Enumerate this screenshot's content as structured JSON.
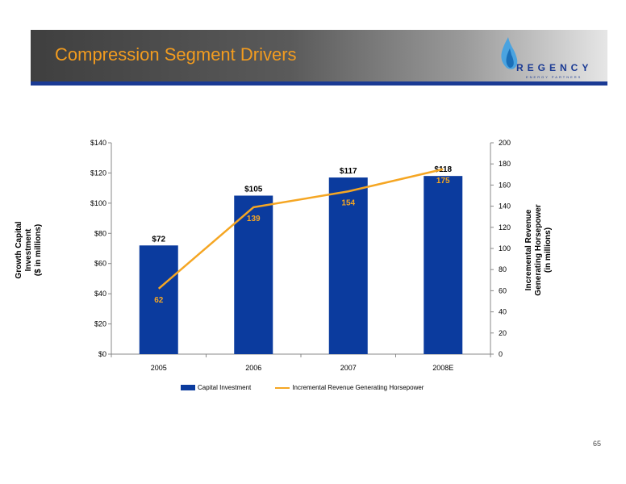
{
  "slide": {
    "title": "Compression Segment Drivers",
    "page_number": "65",
    "logo_text": "REGENCY",
    "logo_subtext": "ENERGY PARTNERS"
  },
  "colors": {
    "bar": "#0b3b9e",
    "line": "#f5a623",
    "title": "#f39c1f",
    "accent_bar": "#1a3a94"
  },
  "chart_data": {
    "type": "bar",
    "categories": [
      "2005",
      "2006",
      "2007",
      "2008E"
    ],
    "series": [
      {
        "name": "Capital Investment",
        "type": "bar",
        "axis": "left",
        "values": [
          72,
          105,
          117,
          118
        ],
        "labels": [
          "$72",
          "$105",
          "$117",
          "$118"
        ]
      },
      {
        "name": "Incremental Revenue Generating Horsepower",
        "type": "line",
        "axis": "right",
        "values": [
          62,
          139,
          154,
          175
        ],
        "labels": [
          "62",
          "139",
          "154",
          "175"
        ]
      }
    ],
    "left_axis": {
      "title_lines": [
        "Growth Capital",
        "Investment",
        "($ in millions)"
      ],
      "ylim": [
        0,
        140
      ],
      "ticks": [
        0,
        20,
        40,
        60,
        80,
        100,
        120,
        140
      ],
      "tick_labels": [
        "$0",
        "$20",
        "$40",
        "$60",
        "$80",
        "$100",
        "$120",
        "$140"
      ]
    },
    "right_axis": {
      "title_lines": [
        "Incremental Revenue",
        "Generating Horsepower",
        "(in millions)"
      ],
      "ylim": [
        0,
        200
      ],
      "ticks": [
        0,
        20,
        40,
        60,
        80,
        100,
        120,
        140,
        160,
        180,
        200
      ],
      "tick_labels": [
        "0",
        "20",
        "40",
        "60",
        "80",
        "100",
        "120",
        "140",
        "160",
        "180",
        "200"
      ]
    },
    "legend_position": "bottom",
    "grid": false
  }
}
